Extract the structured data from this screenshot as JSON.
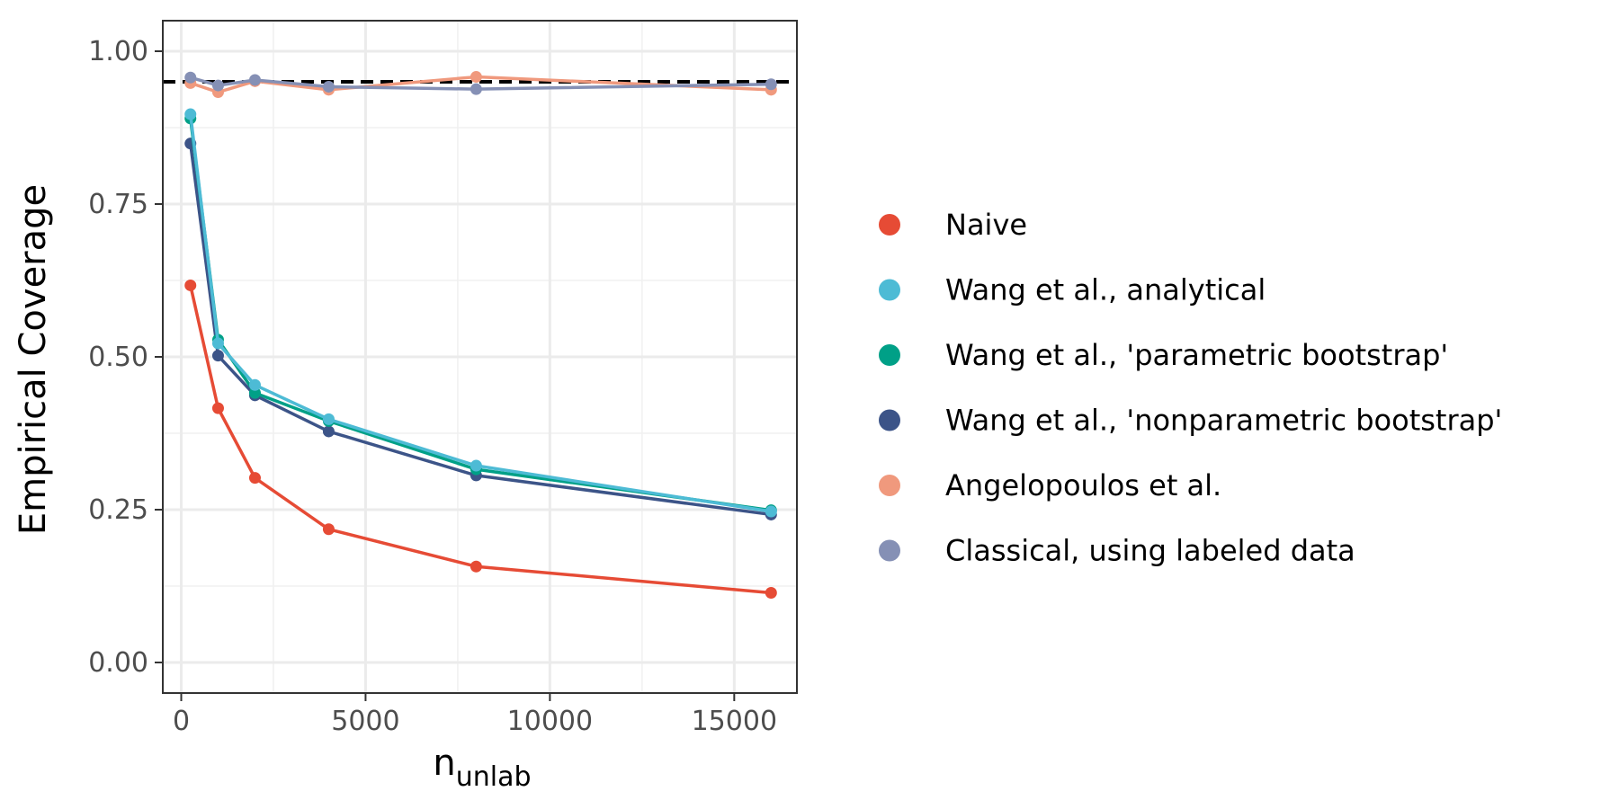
{
  "chart_data": {
    "type": "line",
    "xlabel": "n",
    "xlabel_sub": "unlab",
    "ylabel": "Empirical Coverage",
    "xlim": [
      -500,
      16700
    ],
    "ylim": [
      -0.05,
      1.05
    ],
    "x_ticks": [
      0,
      5000,
      10000,
      15000
    ],
    "x_tick_labels": [
      "0",
      "5000",
      "10000",
      "15000"
    ],
    "y_ticks": [
      0,
      0.25,
      0.5,
      0.75,
      1.0
    ],
    "y_tick_labels": [
      "0.00",
      "0.25",
      "0.50",
      "0.75",
      "1.00"
    ],
    "grid": true,
    "legend_position": "right",
    "reference_line": {
      "y": 0.95,
      "style": "dashed",
      "color": "#000000"
    },
    "x": [
      250,
      1000,
      2000,
      4000,
      8000,
      16000
    ],
    "series": [
      {
        "name": "Angelopoulos et al.",
        "color": "#F0997D",
        "legend": false,
        "values": [
          0.948,
          0.933,
          0.951,
          0.937,
          0.958,
          0.937
        ]
      },
      {
        "name": "Classical, using labeled data",
        "color": "#8590B5",
        "legend": false,
        "values": [
          0.957,
          0.944,
          0.953,
          0.942,
          0.938,
          0.946
        ]
      },
      {
        "name": "Naive",
        "color": "#E64B35",
        "legend": false,
        "values": [
          0.617,
          0.416,
          0.302,
          0.218,
          0.157,
          0.114
        ]
      },
      {
        "name": "Wang et al., 'nonparametric bootstrap'",
        "color": "#3C5488",
        "legend": false,
        "values": [
          0.849,
          0.502,
          0.437,
          0.378,
          0.306,
          0.242
        ]
      },
      {
        "name": "Wang et al., 'parametric bootstrap'",
        "color": "#00A087",
        "legend": false,
        "values": [
          0.89,
          0.528,
          0.441,
          0.395,
          0.316,
          0.249
        ]
      },
      {
        "name": "Wang et al., analytical",
        "color": "#4DBBD5",
        "legend": false,
        "values": [
          0.897,
          0.522,
          0.454,
          0.398,
          0.322,
          0.247
        ]
      }
    ],
    "legend": [
      {
        "label": "Naive",
        "color": "#E64B35"
      },
      {
        "label": "Wang et al., analytical",
        "color": "#4DBBD5"
      },
      {
        "label": "Wang et al., 'parametric bootstrap'",
        "color": "#00A087"
      },
      {
        "label": "Wang et al., 'nonparametric bootstrap'",
        "color": "#3C5488"
      },
      {
        "label": "Angelopoulos et al.",
        "color": "#F0997D"
      },
      {
        "label": "Classical, using labeled data",
        "color": "#8590B5"
      }
    ]
  }
}
